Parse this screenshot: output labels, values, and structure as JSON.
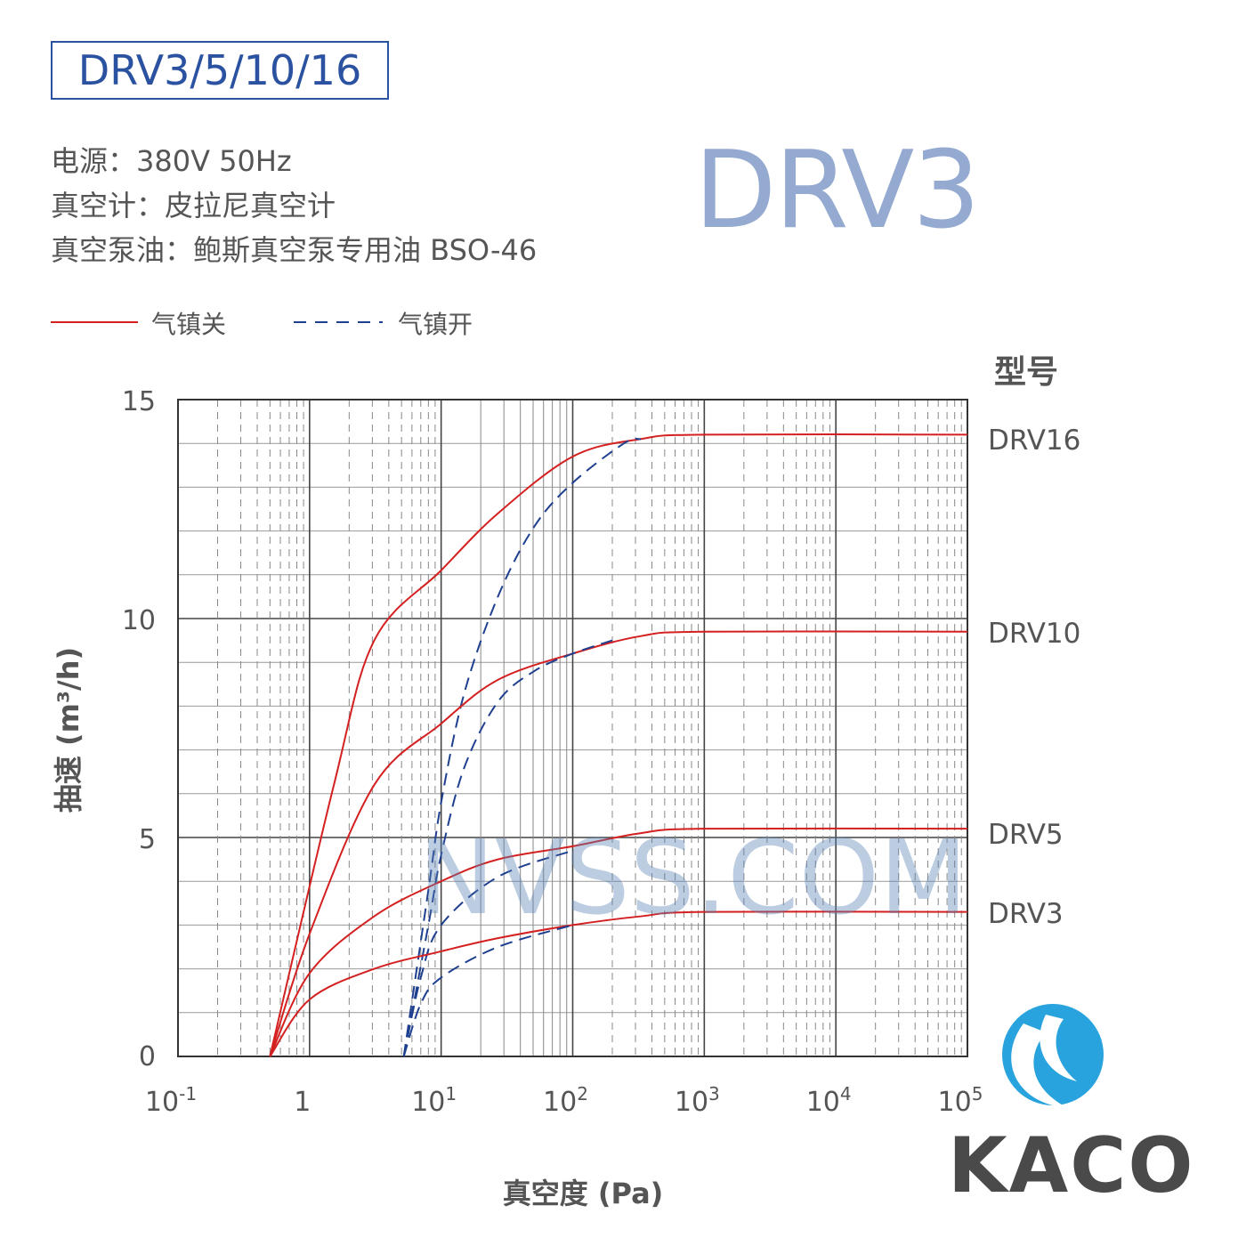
{
  "header": {
    "title": "DRV3/5/10/16",
    "power": "电源：380V 50Hz",
    "gauge": "真空计：皮拉尼真空计",
    "oil": "真空泵油：鲍斯真空泵专用油 BSO-46"
  },
  "watermarks": {
    "model": "DRV3",
    "site": "NVSS.COM"
  },
  "logo": {
    "text": "KACO",
    "color": "#29a3dd"
  },
  "chart_data": {
    "type": "line",
    "xlabel": "真空度 (Pa)",
    "ylabel": "抽速 (m³/h)",
    "xscale": "log",
    "xlim": [
      0.1,
      100000
    ],
    "ylim": [
      0,
      15
    ],
    "xticks": [
      {
        "base": "10",
        "exp": "-1"
      },
      {
        "base": "1",
        "exp": ""
      },
      {
        "base": "10",
        "exp": "1"
      },
      {
        "base": "10",
        "exp": "2"
      },
      {
        "base": "10",
        "exp": "3"
      },
      {
        "base": "10",
        "exp": "4"
      },
      {
        "base": "10",
        "exp": "5"
      }
    ],
    "yticks": [
      "0",
      "5",
      "10",
      "15"
    ],
    "grid": true,
    "legend": {
      "position": "top-left",
      "entries": [
        {
          "label": "气镇关",
          "style": "solid",
          "color": "#d42020"
        },
        {
          "label": "气镇开",
          "style": "dashed",
          "color": "#1f3f8f"
        }
      ]
    },
    "model_header": "型号",
    "series": [
      {
        "name": "DRV16",
        "ballast": "off",
        "x": [
          0.5,
          1.53,
          3.1,
          10,
          27,
          100,
          330,
          1000,
          100000
        ],
        "y": [
          0,
          6.2,
          9.5,
          11.1,
          12.4,
          13.7,
          14.1,
          14.2,
          14.2
        ]
      },
      {
        "name": "DRV16",
        "ballast": "on",
        "x": [
          5.2,
          8,
          10,
          15,
          27,
          51,
          100,
          245,
          330
        ],
        "y": [
          0,
          3.8,
          5.8,
          8.3,
          10.5,
          12.1,
          13.1,
          14.0,
          14.1
        ]
      },
      {
        "name": "DRV10",
        "ballast": "off",
        "x": [
          0.5,
          1,
          3.1,
          10,
          27,
          100,
          330,
          1000,
          100000
        ],
        "y": [
          0,
          2.8,
          6.2,
          7.6,
          8.6,
          9.2,
          9.6,
          9.7,
          9.7
        ]
      },
      {
        "name": "DRV10",
        "ballast": "on",
        "x": [
          5.2,
          8,
          10,
          15,
          27,
          51,
          100,
          200
        ],
        "y": [
          0,
          3.0,
          4.6,
          6.6,
          8.1,
          8.8,
          9.2,
          9.5
        ]
      },
      {
        "name": "DRV5",
        "ballast": "off",
        "x": [
          0.5,
          1,
          3.1,
          10,
          27,
          100,
          330,
          1000,
          100000
        ],
        "y": [
          0,
          1.9,
          3.2,
          4.0,
          4.5,
          4.8,
          5.1,
          5.2,
          5.2
        ]
      },
      {
        "name": "DRV5",
        "ballast": "on",
        "x": [
          5.2,
          7,
          10,
          27,
          100
        ],
        "y": [
          0,
          1.8,
          3.0,
          4.1,
          4.7
        ]
      },
      {
        "name": "DRV3",
        "ballast": "off",
        "x": [
          0.5,
          1,
          3.1,
          10,
          27,
          100,
          330,
          1000,
          100000
        ],
        "y": [
          0,
          1.3,
          2.0,
          2.4,
          2.7,
          3.0,
          3.2,
          3.3,
          3.3
        ]
      },
      {
        "name": "DRV3",
        "ballast": "on",
        "x": [
          5.2,
          7,
          10,
          27,
          100
        ],
        "y": [
          0,
          1.2,
          1.8,
          2.5,
          3.0
        ]
      }
    ],
    "series_labels": [
      "DRV16",
      "DRV10",
      "DRV5",
      "DRV3"
    ]
  }
}
